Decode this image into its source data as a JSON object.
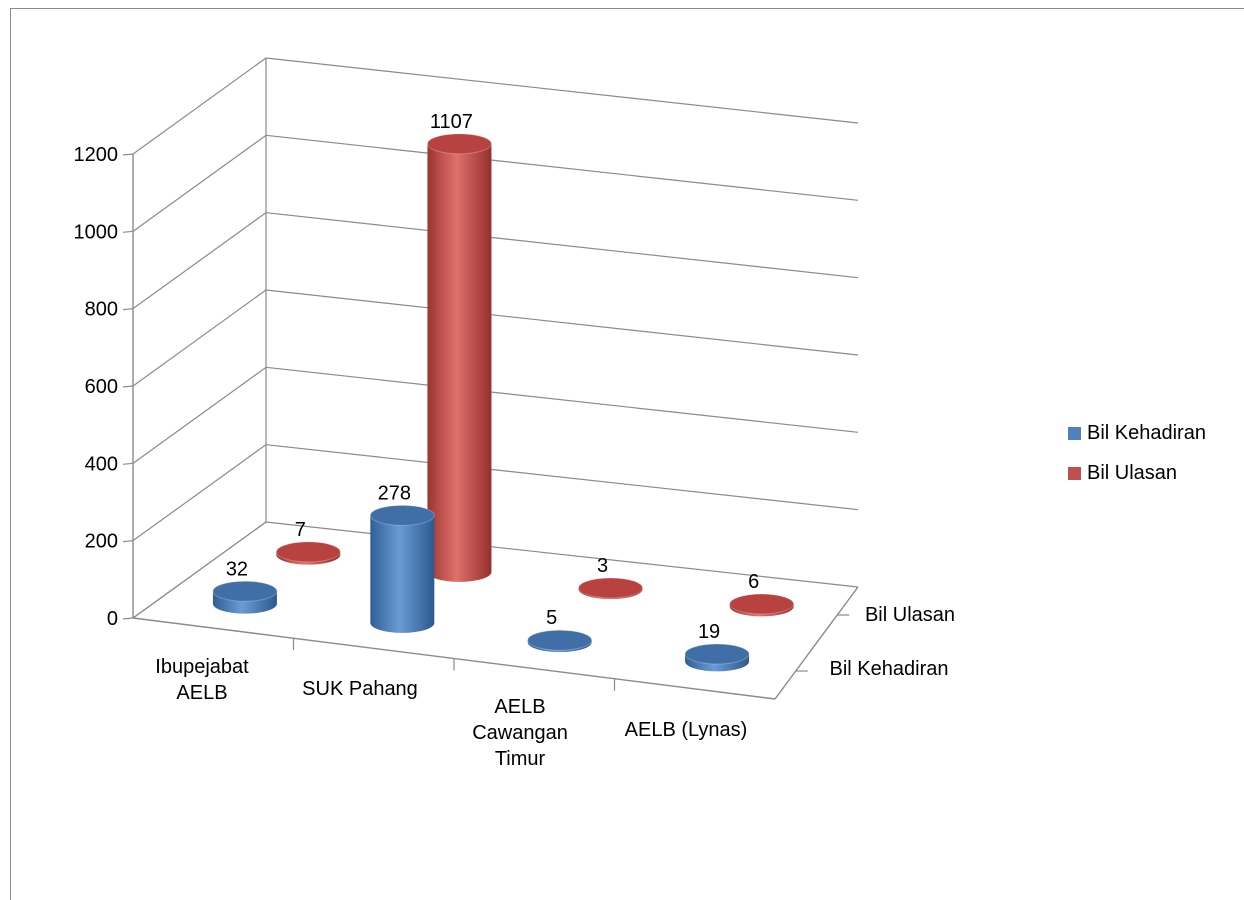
{
  "chart_data": {
    "type": "bar",
    "categories": [
      "Ibupejabat AELB",
      "SUK Pahang",
      "AELB Cawangan Timur",
      "AELB (Lynas)"
    ],
    "category_lines": [
      [
        "Ibupejabat",
        "AELB"
      ],
      [
        "SUK Pahang"
      ],
      [
        "AELB",
        "Cawangan",
        "Timur"
      ],
      [
        "AELB (Lynas)"
      ]
    ],
    "series": [
      {
        "name": "Bil Kehadiran",
        "values": [
          32,
          278,
          5,
          19
        ],
        "color": "#4f81bd"
      },
      {
        "name": "Bil Ulasan",
        "values": [
          7,
          1107,
          3,
          6
        ],
        "color": "#c0504d"
      }
    ],
    "depth_labels": [
      "Bil Ulasan",
      "Bil Kehadiran"
    ],
    "ylim": [
      0,
      1200
    ],
    "yticks": [
      0,
      200,
      400,
      600,
      800,
      1000,
      1200
    ],
    "grid": true,
    "legend_position": "right",
    "shape": "3d-cylinder"
  }
}
